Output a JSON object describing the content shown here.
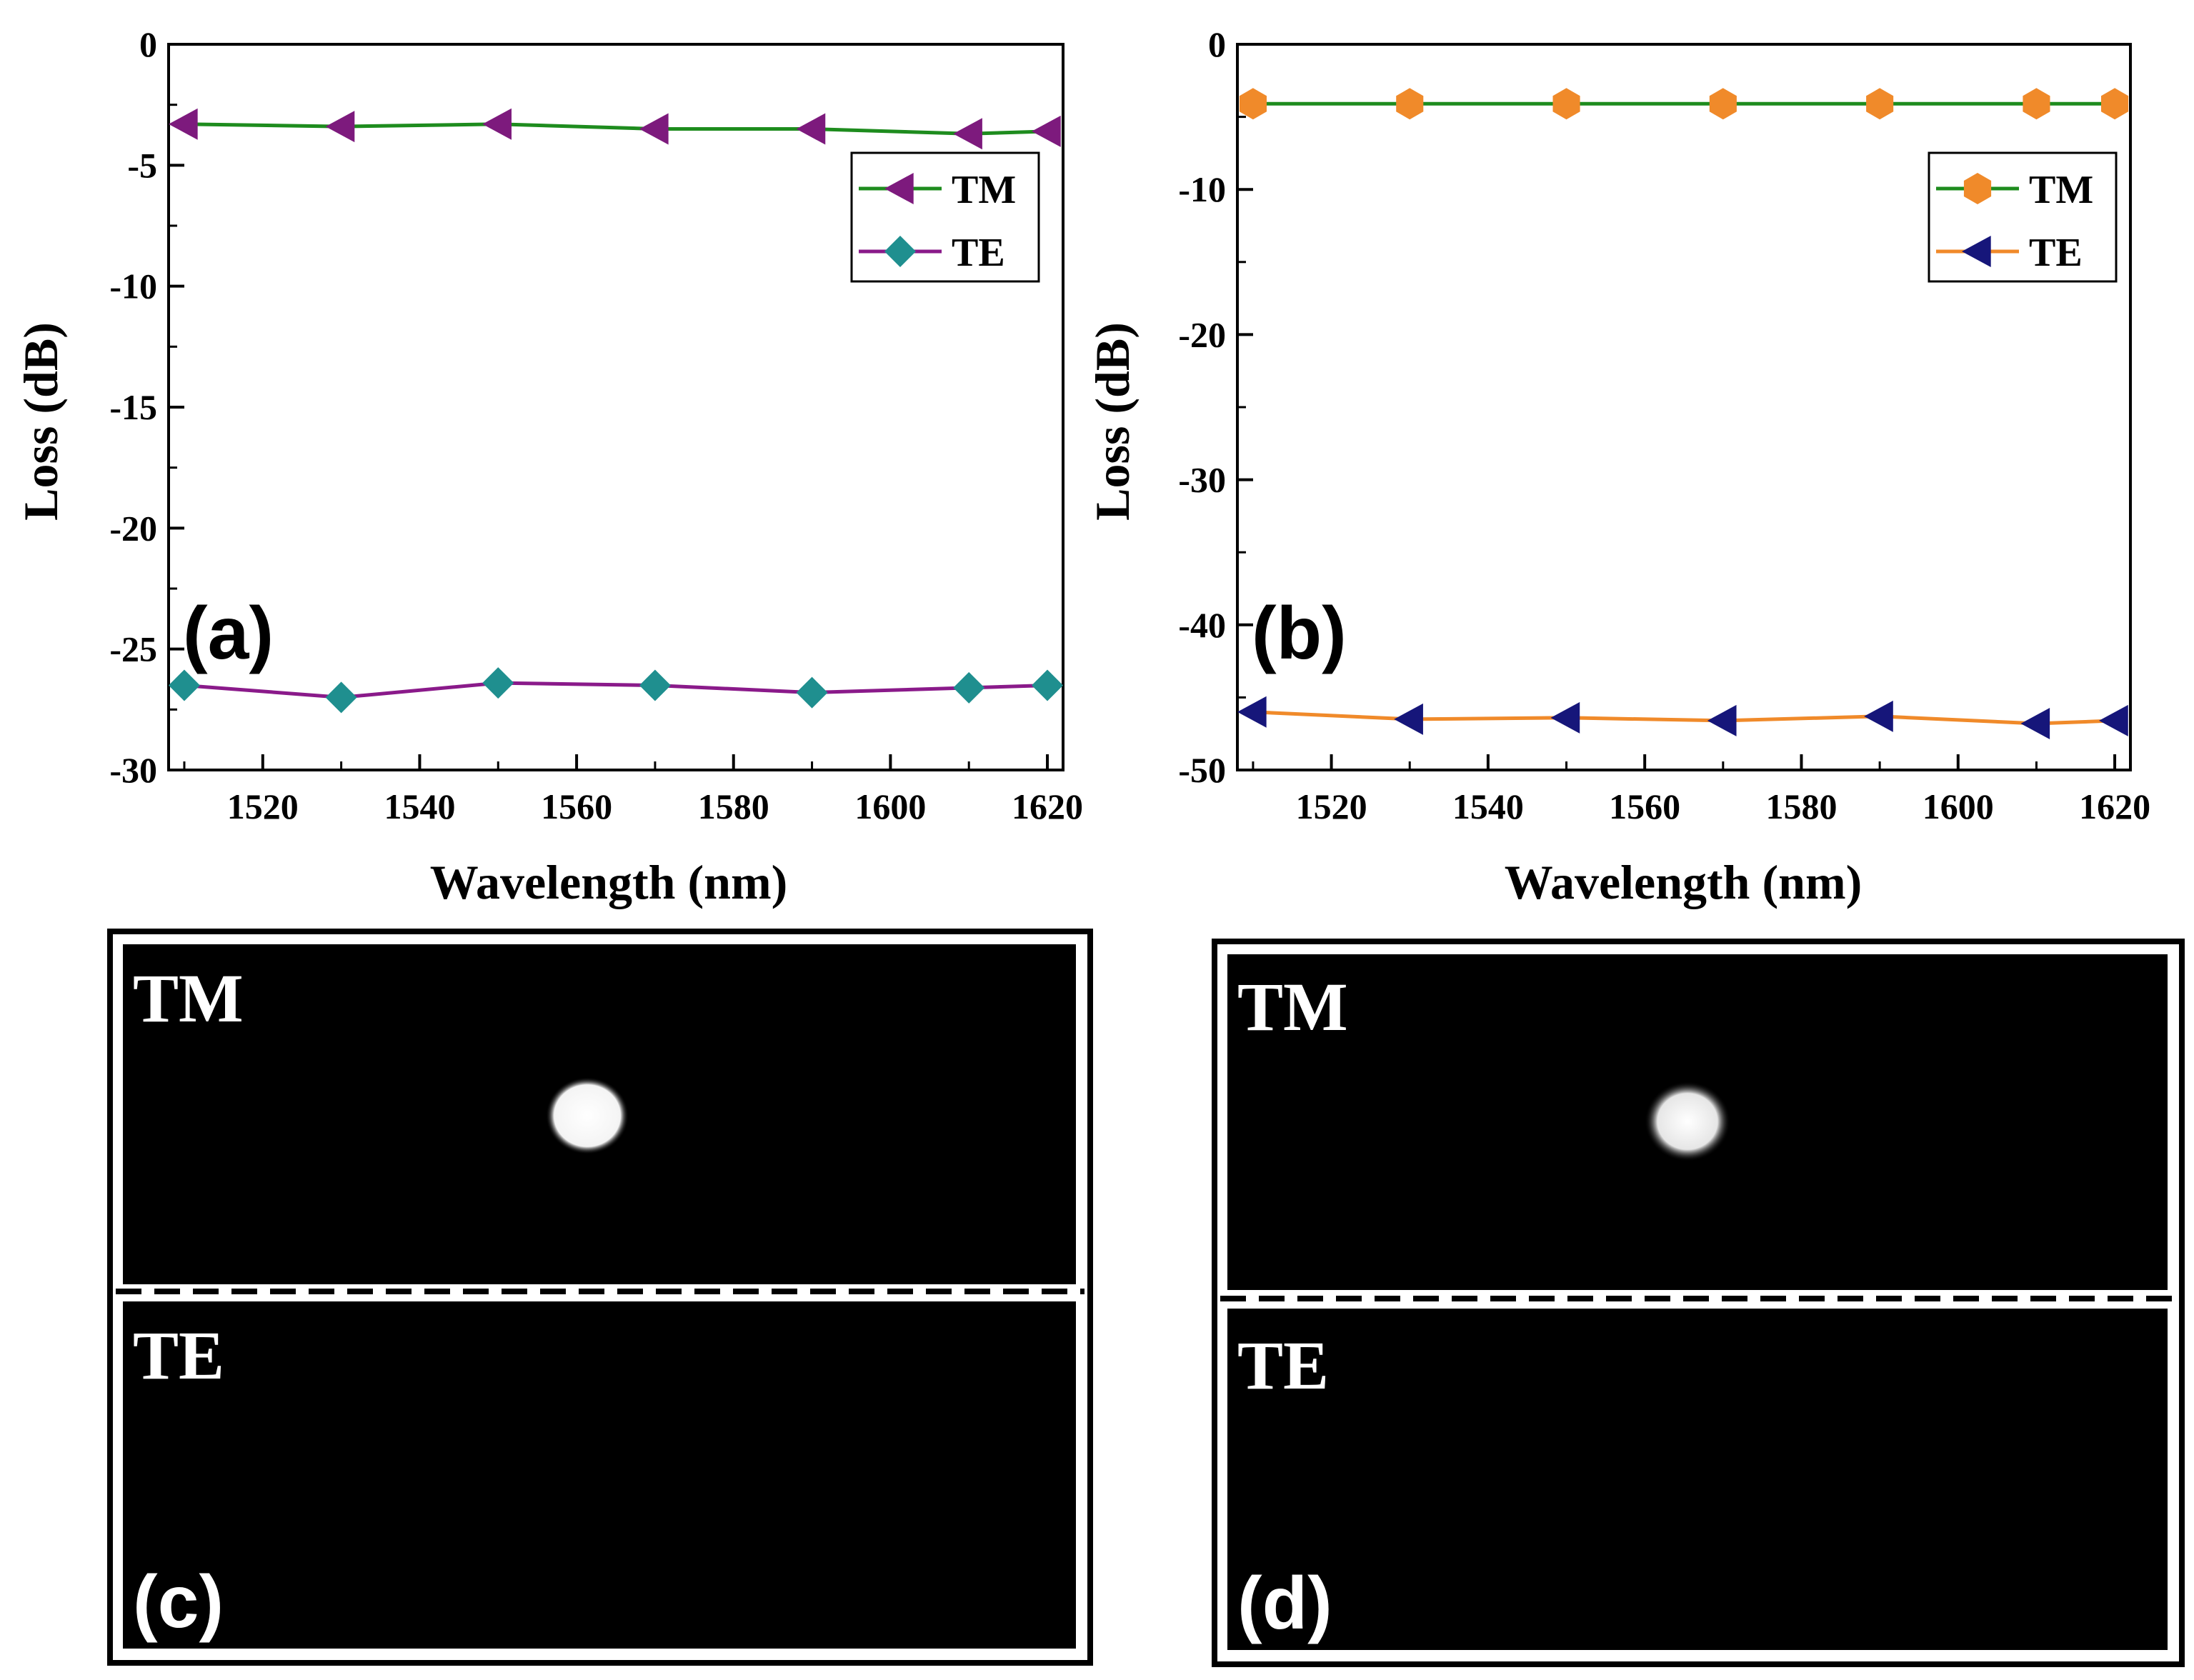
{
  "chart_data": [
    {
      "panel": "(a)",
      "type": "line",
      "xlabel": "Wavelength (nm)",
      "ylabel": "Loss (dB)",
      "xlim": [
        1508,
        1622
      ],
      "ylim": [
        -30,
        0
      ],
      "xticks": [
        1520,
        1540,
        1560,
        1580,
        1600,
        1620
      ],
      "xtick_labels": [
        "1520",
        "1540",
        "1560",
        "1580",
        "1600",
        "1620"
      ],
      "yticks": [
        0,
        -5,
        -10,
        -15,
        -20,
        -25,
        -30
      ],
      "ytick_labels": [
        "0",
        "-5",
        "-10",
        "-15",
        "-20",
        "-25",
        "-30"
      ],
      "x": [
        1510,
        1530,
        1550,
        1570,
        1590,
        1610,
        1620
      ],
      "legend_position": "top-right",
      "series": [
        {
          "name": "TM",
          "values": [
            -3.3,
            -3.4,
            -3.3,
            -3.5,
            -3.5,
            -3.7,
            -3.6
          ],
          "line_color": "#1e8c1e",
          "marker": "triangle-left",
          "marker_color": "#7d1a7d"
        },
        {
          "name": "TE",
          "values": [
            -26.5,
            -27.0,
            -26.4,
            -26.5,
            -26.8,
            -26.6,
            -26.5
          ],
          "line_color": "#8a1a8a",
          "marker": "diamond",
          "marker_color": "#1f8f8f"
        }
      ]
    },
    {
      "panel": "(b)",
      "type": "line",
      "xlabel": "Wavelength (nm)",
      "ylabel": "Loss (dB)",
      "xlim": [
        1508,
        1622
      ],
      "ylim": [
        -50,
        0
      ],
      "xticks": [
        1520,
        1540,
        1560,
        1580,
        1600,
        1620
      ],
      "xtick_labels": [
        "1520",
        "1540",
        "1560",
        "1580",
        "1600",
        "1620"
      ],
      "yticks": [
        0,
        -10,
        -20,
        -30,
        -40,
        -50
      ],
      "ytick_labels": [
        "0",
        "-10",
        "-20",
        "-30",
        "-40",
        "-50"
      ],
      "x": [
        1510,
        1530,
        1550,
        1570,
        1590,
        1610,
        1620
      ],
      "legend_position": "top-right",
      "series": [
        {
          "name": "TM",
          "values": [
            -4.1,
            -4.1,
            -4.1,
            -4.1,
            -4.1,
            -4.1,
            -4.1
          ],
          "line_color": "#1e8c1e",
          "marker": "hexagon",
          "marker_color": "#f08a2a"
        },
        {
          "name": "TE",
          "values": [
            -46.0,
            -46.5,
            -46.4,
            -46.6,
            -46.3,
            -46.8,
            -46.6
          ],
          "line_color": "#f08a2a",
          "marker": "triangle-left",
          "marker_color": "#16167a"
        }
      ]
    }
  ],
  "images": [
    {
      "panel": "(c)",
      "top_label": "TM",
      "bottom_label": "TE"
    },
    {
      "panel": "(d)",
      "top_label": "TM",
      "bottom_label": "TE"
    }
  ]
}
